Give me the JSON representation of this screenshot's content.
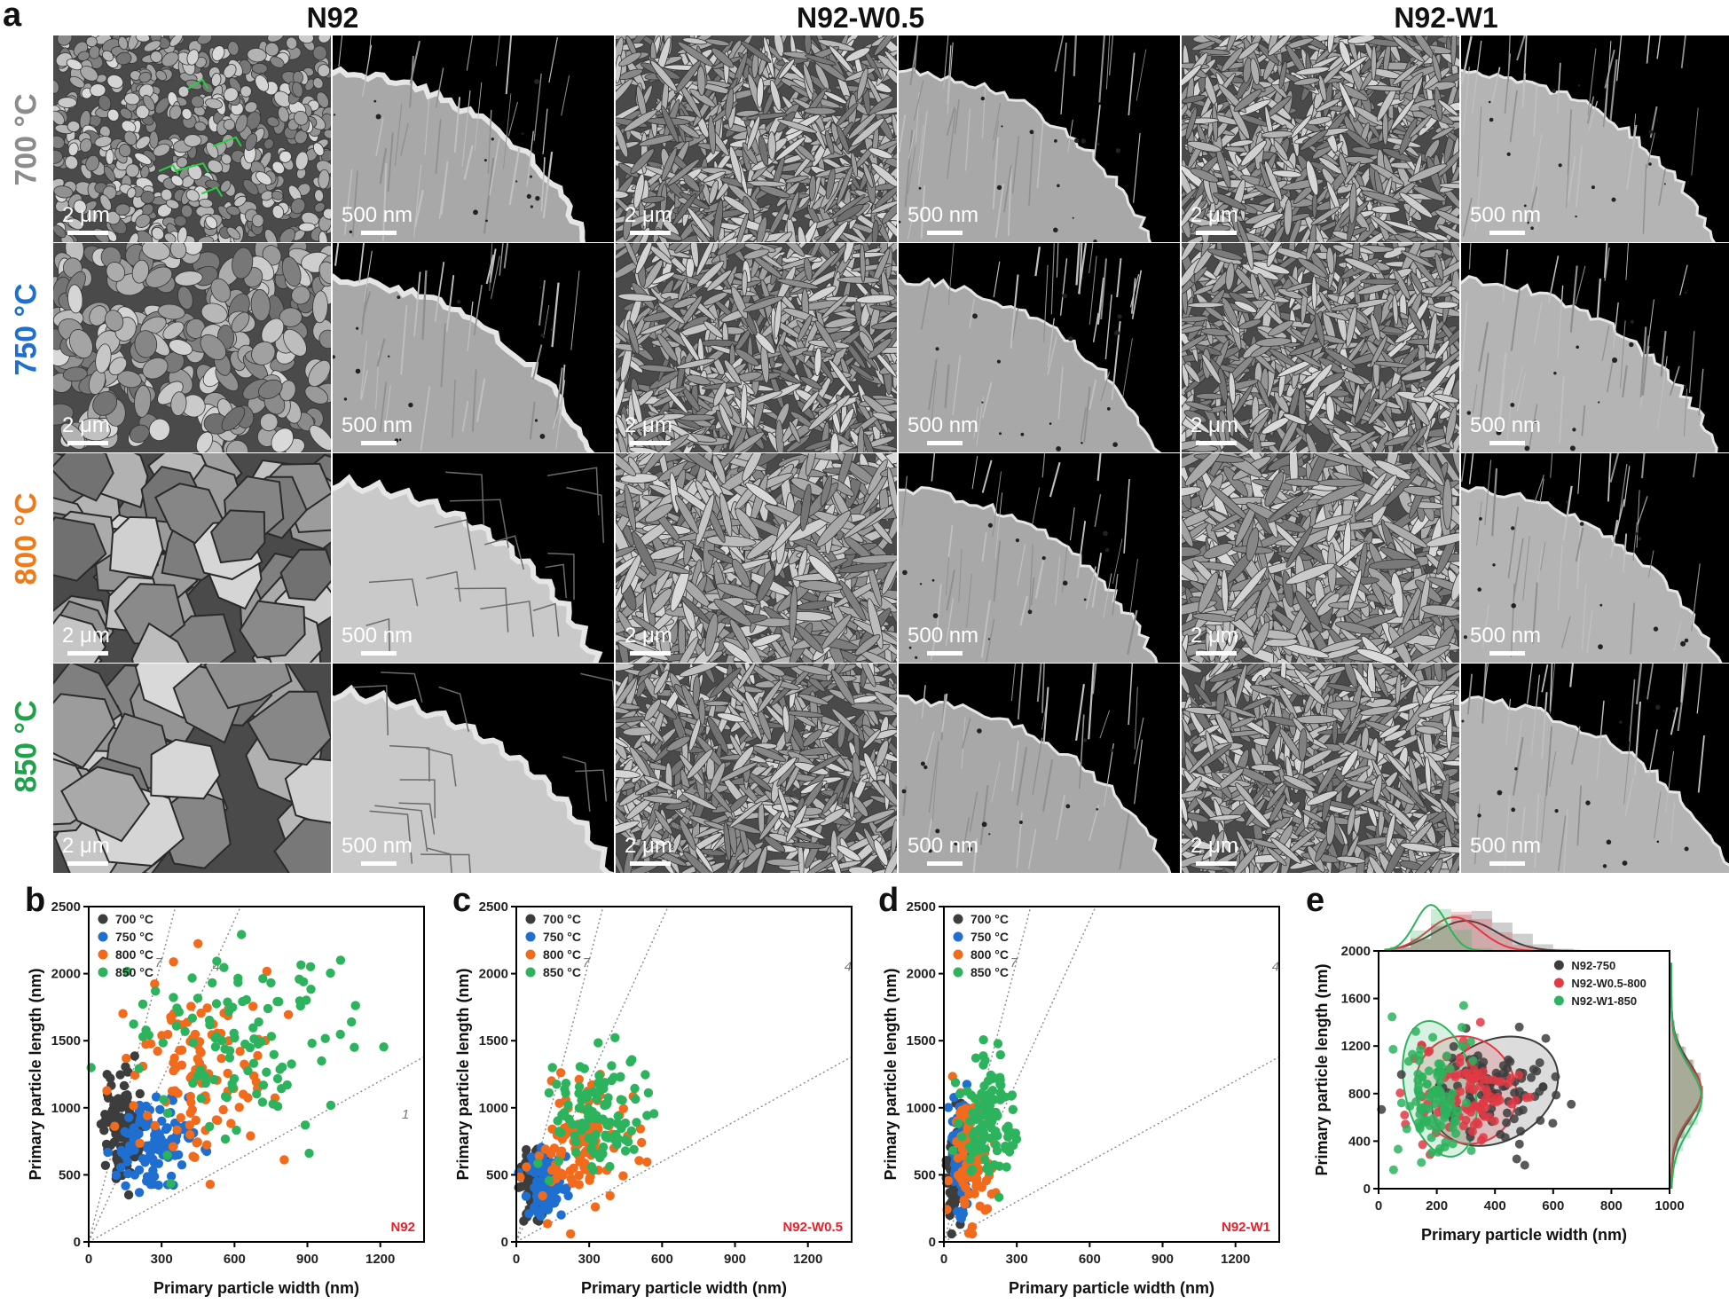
{
  "panel_labels": {
    "a": "a",
    "b": "b",
    "c": "c",
    "d": "d",
    "e": "e"
  },
  "grid": {
    "columns": [
      "N92",
      "N92-W0.5",
      "N92-W1"
    ],
    "rows": [
      {
        "label": "700 °C",
        "color": "#8c8c8c"
      },
      {
        "label": "750 °C",
        "color": "#1f6fd1"
      },
      {
        "label": "800 °C",
        "color": "#f07a1a"
      },
      {
        "label": "850 °C",
        "color": "#1fa34a"
      }
    ],
    "scale_sem": "2 μm",
    "scale_tem": "500 nm"
  },
  "colors": {
    "700": "#3d3d3d",
    "750": "#1f6fd1",
    "800": "#f26b1d",
    "850": "#2db35d",
    "n92": "#3d3d3d",
    "w05": "#e03a44",
    "w1": "#2db35d",
    "ratio": "#888888",
    "sample_label": "#e8202a"
  },
  "chart_data": [
    {
      "id": "b",
      "type": "scatter",
      "sample_label": "N92",
      "xlabel": "Primary particle width (nm)",
      "ylabel": "Primary particle length (nm)",
      "xlim": [
        0,
        1380
      ],
      "ylim": [
        0,
        2500
      ],
      "xticks": [
        0,
        300,
        600,
        900,
        1200
      ],
      "yticks": [
        0,
        500,
        1000,
        1500,
        2000,
        2500
      ],
      "legend": [
        "700 °C",
        "750 °C",
        "800 °C",
        "850 °C"
      ],
      "ratio_lines": [
        {
          "label": "7",
          "slope": 7
        },
        {
          "label": "4",
          "slope": 4
        },
        {
          "label": "1",
          "slope": 1
        }
      ],
      "series": [
        {
          "name": "700 °C",
          "cx": 130,
          "cy": 850,
          "sx": 35,
          "sy": 200,
          "n": 110
        },
        {
          "name": "750 °C",
          "cx": 280,
          "cy": 700,
          "sx": 90,
          "sy": 170,
          "n": 110
        },
        {
          "name": "800 °C",
          "cx": 450,
          "cy": 1250,
          "sx": 130,
          "sy": 350,
          "n": 110
        },
        {
          "name": "850 °C",
          "cx": 620,
          "cy": 1450,
          "sx": 230,
          "sy": 380,
          "n": 110
        }
      ]
    },
    {
      "id": "c",
      "type": "scatter",
      "sample_label": "N92-W0.5",
      "xlabel": "Primary particle width (nm)",
      "ylabel": "Primary particle length (nm)",
      "xlim": [
        0,
        1380
      ],
      "ylim": [
        0,
        2500
      ],
      "xticks": [
        0,
        300,
        600,
        900,
        1200
      ],
      "yticks": [
        0,
        500,
        1000,
        1500,
        2000,
        2500
      ],
      "legend": [
        "700 °C",
        "750 °C",
        "800 °C",
        "850 °C"
      ],
      "ratio_lines": [
        {
          "label": "7",
          "slope": 7
        },
        {
          "label": "4",
          "slope": 4
        },
        {
          "label": "1",
          "slope": 1
        }
      ],
      "series": [
        {
          "name": "700 °C",
          "cx": 70,
          "cy": 450,
          "sx": 25,
          "sy": 130,
          "n": 110
        },
        {
          "name": "750 °C",
          "cx": 130,
          "cy": 450,
          "sx": 40,
          "sy": 120,
          "n": 110
        },
        {
          "name": "800 °C",
          "cx": 260,
          "cy": 750,
          "sx": 90,
          "sy": 250,
          "n": 110
        },
        {
          "name": "850 °C",
          "cx": 340,
          "cy": 950,
          "sx": 100,
          "sy": 250,
          "n": 110
        }
      ]
    },
    {
      "id": "d",
      "type": "scatter",
      "sample_label": "N92-W1",
      "xlabel": "Primary particle width (nm)",
      "ylabel": "Primary particle length (nm)",
      "xlim": [
        0,
        1380
      ],
      "ylim": [
        0,
        2500
      ],
      "xticks": [
        0,
        300,
        600,
        900,
        1200
      ],
      "yticks": [
        0,
        500,
        1000,
        1500,
        2000,
        2500
      ],
      "legend": [
        "700 °C",
        "750 °C",
        "800 °C",
        "850 °C"
      ],
      "ratio_lines": [
        {
          "label": "7",
          "slope": 7
        },
        {
          "label": "4",
          "slope": 4
        },
        {
          "label": "1",
          "slope": 1
        }
      ],
      "series": [
        {
          "name": "700 °C",
          "cx": 45,
          "cy": 550,
          "sx": 15,
          "sy": 180,
          "n": 110
        },
        {
          "name": "750 °C",
          "cx": 70,
          "cy": 650,
          "sx": 22,
          "sy": 180,
          "n": 110
        },
        {
          "name": "800 °C",
          "cx": 120,
          "cy": 650,
          "sx": 45,
          "sy": 220,
          "n": 110
        },
        {
          "name": "850 °C",
          "cx": 185,
          "cy": 900,
          "sx": 60,
          "sy": 230,
          "n": 110
        }
      ]
    },
    {
      "id": "e",
      "type": "scatter",
      "sample_label": "",
      "xlabel": "Primary particle width (nm)",
      "ylabel": "Primary particle length (nm)",
      "xlim": [
        0,
        1000
      ],
      "ylim": [
        0,
        2000
      ],
      "xticks": [
        0,
        200,
        400,
        600,
        800,
        1000
      ],
      "yticks": [
        0,
        400,
        800,
        1200,
        1600,
        2000
      ],
      "legend": [
        "N92-750",
        "N92-W0.5-800",
        "N92-W1-850"
      ],
      "series": [
        {
          "name": "N92-750",
          "cx": 400,
          "cy": 800,
          "sx": 110,
          "sy": 230,
          "n": 100
        },
        {
          "name": "N92-W0.5-800",
          "cx": 300,
          "cy": 820,
          "sx": 85,
          "sy": 220,
          "n": 100
        },
        {
          "name": "N92-W1-850",
          "cx": 190,
          "cy": 780,
          "sx": 55,
          "sy": 260,
          "n": 100
        }
      ]
    }
  ]
}
